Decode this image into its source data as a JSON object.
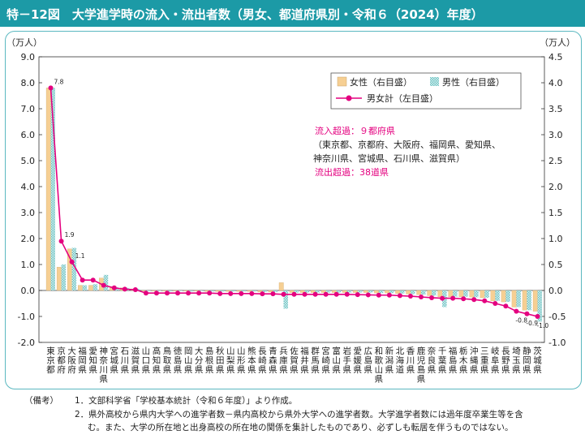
{
  "title": "特－12図　大学進学時の流入・流出者数（男女、都道府県別・令和６（2024）年度）",
  "chart_data": {
    "type": "bar",
    "categories": [
      "東京都",
      "京都府",
      "大阪府",
      "福岡県",
      "愛知県",
      "神奈川県",
      "宮城県",
      "石川県",
      "滋賀県",
      "山口県",
      "高知県",
      "鳥取県",
      "徳島県",
      "岡山県",
      "大分県",
      "島根県",
      "秋田県",
      "山梨県",
      "山形県",
      "熊本県",
      "長崎県",
      "青森県",
      "兵庫県",
      "佐賀県",
      "福井県",
      "群馬県",
      "宮崎県",
      "富山県",
      "岩手県",
      "愛媛県",
      "広島県",
      "和歌山県",
      "新潟県",
      "北海道",
      "香川県",
      "鹿児島県",
      "奈良県",
      "千葉県",
      "福島県",
      "栃木県",
      "沖縄県",
      "三重県",
      "岐阜県",
      "長野県",
      "埼玉県",
      "静岡県",
      "茨城県"
    ],
    "series": [
      {
        "name": "女性（右目盛）",
        "axis": "right",
        "color": "#f6cf93",
        "values": [
          3.9,
          0.45,
          0.8,
          0.1,
          0.1,
          0.24,
          0.05,
          0.05,
          0.03,
          -0.01,
          -0.01,
          -0.01,
          -0.01,
          -0.01,
          -0.01,
          -0.02,
          -0.02,
          -0.02,
          -0.02,
          -0.02,
          -0.03,
          -0.03,
          0.15,
          -0.04,
          -0.04,
          -0.04,
          -0.04,
          -0.04,
          -0.04,
          -0.04,
          -0.04,
          -0.05,
          -0.05,
          -0.06,
          -0.07,
          -0.08,
          -0.1,
          -0.12,
          -0.12,
          -0.12,
          -0.13,
          -0.14,
          -0.2,
          -0.22,
          -0.32,
          -0.38,
          -0.4
        ]
      },
      {
        "name": "男性（右目盛）",
        "axis": "right",
        "color": "#a8dcdc",
        "values": [
          3.9,
          0.5,
          0.82,
          0.1,
          0.12,
          0.3,
          0.06,
          0.05,
          0.03,
          -0.01,
          -0.01,
          -0.02,
          -0.01,
          -0.02,
          -0.01,
          -0.02,
          -0.02,
          -0.02,
          -0.02,
          -0.02,
          -0.03,
          -0.03,
          -0.35,
          -0.04,
          -0.04,
          -0.04,
          -0.04,
          -0.04,
          -0.04,
          -0.04,
          -0.04,
          -0.05,
          -0.05,
          -0.06,
          -0.07,
          -0.08,
          -0.1,
          -0.32,
          -0.12,
          -0.12,
          -0.13,
          -0.14,
          -0.2,
          -0.22,
          -0.32,
          -0.38,
          -0.6
        ]
      },
      {
        "name": "男女計（左目盛）",
        "axis": "left",
        "color": "#e4007f",
        "values": [
          7.8,
          1.9,
          1.1,
          0.4,
          0.4,
          0.2,
          0.1,
          0.05,
          0.03,
          -0.1,
          -0.1,
          -0.1,
          -0.1,
          -0.1,
          -0.1,
          -0.1,
          -0.12,
          -0.12,
          -0.12,
          -0.12,
          -0.13,
          -0.13,
          -0.15,
          -0.15,
          -0.15,
          -0.15,
          -0.15,
          -0.15,
          -0.15,
          -0.16,
          -0.17,
          -0.18,
          -0.18,
          -0.2,
          -0.22,
          -0.25,
          -0.28,
          -0.3,
          -0.3,
          -0.32,
          -0.35,
          -0.4,
          -0.5,
          -0.6,
          -0.8,
          -0.9,
          -1.0
        ]
      }
    ],
    "data_labels": {
      "0": "7.8",
      "1": "1.9",
      "2": "1.1",
      "44": "-0.8",
      "45": "-0.9",
      "46": "-1.0"
    },
    "left_axis": {
      "label": "（万人）",
      "ylim": [
        -2.0,
        9.0
      ],
      "ticks": [
        "-2.0",
        "-1.0",
        "0.0",
        "1.0",
        "2.0",
        "3.0",
        "4.0",
        "5.0",
        "6.0",
        "7.0",
        "8.0",
        "9.0"
      ]
    },
    "right_axis": {
      "label": "（万人）",
      "ylim": [
        -1.0,
        4.5
      ],
      "ticks": [
        "-1.0",
        "-0.5",
        "0.0",
        "0.5",
        "1.0",
        "1.5",
        "2.0",
        "2.5",
        "3.0",
        "3.5",
        "4.0",
        "4.5"
      ]
    },
    "legend_position": "top-right",
    "grid": false,
    "annotation": {
      "inflow": "流入超過：９都府県",
      "inflow_detail": [
        "（東京都、京都府、大阪府、福岡県、愛知県、",
        "神奈川県、宮城県、石川県、滋賀県）"
      ],
      "outflow": "流出超過：38道県",
      "accent_color": "#e4007f"
    }
  },
  "notes": {
    "head": "（備考）",
    "line1": "1．文部科学省「学校基本統計（令和６年度）」より作成。",
    "line2": "2．県外高校から県内大学への進学者数－県内高校から県外大学への進学者数。大学進学者数には過年度卒業生等を含",
    "line2b": "む。また、大学の所在地と出身高校の所在地の関係を集計したものであり、必ずしも転居を伴うものではない。"
  },
  "colors": {
    "title_bar": "#1c9aa6",
    "frame": "#5bb8c0",
    "line": "#e4007f",
    "female": "#f6cf93",
    "male": "#a8dcdc"
  }
}
